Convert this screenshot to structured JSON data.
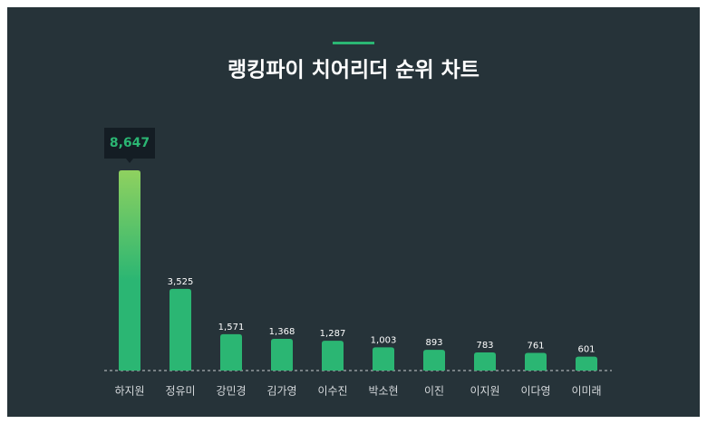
{
  "chart_data": {
    "type": "bar",
    "title": "랭킹파이 치어리더 순위 차트",
    "categories": [
      "하지원",
      "정유미",
      "강민경",
      "김가영",
      "이수진",
      "박소현",
      "이진",
      "이지원",
      "이다영",
      "이미래"
    ],
    "values": [
      8647,
      3525,
      1571,
      1368,
      1287,
      1003,
      893,
      783,
      761,
      601
    ],
    "value_labels": [
      "8,647",
      "3,525",
      "1,571",
      "1,368",
      "1,287",
      "1,003",
      "893",
      "783",
      "761",
      "601"
    ],
    "color": "#2bb673",
    "highlight_color": "#8fd15f"
  }
}
